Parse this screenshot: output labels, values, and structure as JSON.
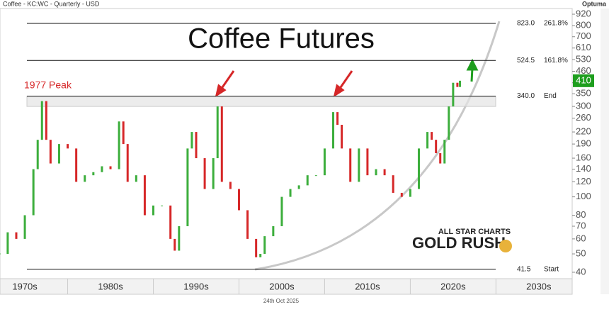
{
  "chart_data": {
    "type": "candlestick",
    "header": "Coffee - KC:WC - Quarterly - USD",
    "brand": "Optuma",
    "title": "Coffee Futures",
    "annotation": "1977 Peak",
    "logo_top": "ALL STAR CHARTS",
    "logo_bottom": "GOLD RUSH",
    "date": "24th Oct 2025",
    "log_scale": true,
    "x": [
      1972,
      1973,
      1974,
      1975,
      1976,
      1976.5,
      1977,
      1977.5,
      1978,
      1979,
      1980,
      1981,
      1982,
      1983,
      1984,
      1985,
      1986,
      1986.5,
      1987,
      1988,
      1989,
      1990,
      1991,
      1992,
      1992.5,
      1993,
      1994,
      1994.5,
      1995,
      1996,
      1997,
      1997.5,
      1998,
      1999,
      2000,
      2001,
      2002,
      2002.5,
      2003,
      2004,
      2005,
      2006,
      2007,
      2008,
      2009,
      2010,
      2011,
      2011.5,
      2012,
      2013,
      2014,
      2015,
      2016,
      2017,
      2018,
      2019,
      2020,
      2021,
      2022,
      2022.5,
      2023,
      2023.5,
      2024,
      2024.5,
      2025,
      2025.5,
      2025.8
    ],
    "series": [
      {
        "name": "Coffee",
        "up_color": "#3cae3c",
        "down_color": "#d62728",
        "values": [
          50,
          65,
          60,
          80,
          140,
          200,
          320,
          200,
          150,
          190,
          180,
          120,
          130,
          135,
          145,
          140,
          250,
          190,
          120,
          130,
          80,
          90,
          90,
          60,
          52,
          70,
          180,
          220,
          160,
          110,
          160,
          300,
          120,
          110,
          85,
          60,
          48,
          50,
          62,
          70,
          100,
          110,
          115,
          130,
          130,
          180,
          280,
          240,
          180,
          120,
          180,
          130,
          140,
          130,
          105,
          100,
          110,
          180,
          220,
          200,
          170,
          150,
          200,
          300,
          400,
          380,
          410
        ]
      }
    ],
    "xlim": [
      1972.1,
      2038.9
    ],
    "xticks": [
      {
        "value": 1975,
        "label": "1970s"
      },
      {
        "value": 1985,
        "label": "1980s"
      },
      {
        "value": 1995,
        "label": "1990s"
      },
      {
        "value": 2005,
        "label": "2000s"
      },
      {
        "value": 2015,
        "label": "2010s"
      },
      {
        "value": 2025,
        "label": "2020s"
      },
      {
        "value": 2035,
        "label": "2030s"
      }
    ],
    "ylim": [
      37,
      986
    ],
    "yticks": [
      40,
      50,
      60,
      70,
      80,
      100,
      120,
      140,
      160,
      190,
      220,
      260,
      300,
      350,
      400,
      460,
      530,
      610,
      700,
      800,
      920
    ],
    "zone": [
      300,
      340
    ],
    "levels": [
      {
        "value": 823,
        "label": "823.0",
        "tag": "261.8%"
      },
      {
        "value": 524.5,
        "label": "524.5",
        "tag": "161.8%"
      },
      {
        "value": 340,
        "label": "340.0",
        "tag": "End"
      },
      {
        "value": 41.5,
        "label": "41.5",
        "tag": "Start"
      }
    ],
    "last_color": "#1e9e1e"
  }
}
